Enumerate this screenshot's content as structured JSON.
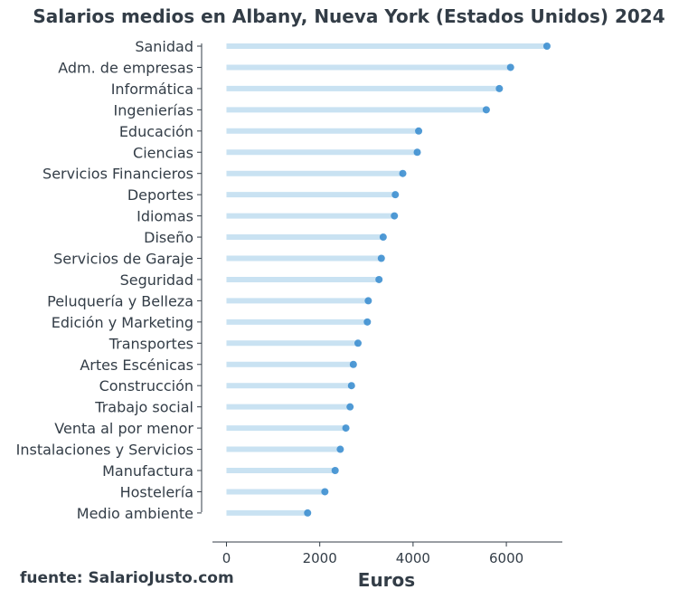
{
  "title": "Salarios medios en Albany, Nueva York (Estados Unidos) 2024",
  "source": "fuente: SalarioJusto.com",
  "colors": {
    "stem": "#c9e2f2",
    "point": "#3d8fd0",
    "axis": "#333d47"
  },
  "chart_data": {
    "type": "lollipop",
    "title": "Salarios medios en Albany, Nueva York (Estados Unidos) 2024",
    "xlabel": "Euros",
    "ylabel": "",
    "xlim": [
      -300,
      7200
    ],
    "xticks": [
      0,
      2000,
      4000,
      6000
    ],
    "grid": false,
    "categories": [
      "Sanidad",
      "Adm. de empresas",
      "Informática",
      "Ingenierías",
      "Educación",
      "Ciencias",
      "Servicios Financieros",
      "Deportes",
      "Idiomas",
      "Diseño",
      "Servicios de Garaje",
      "Seguridad",
      "Peluquería y Belleza",
      "Edición y Marketing",
      "Transportes",
      "Artes Escénicas",
      "Construcción",
      "Trabajo social",
      "Venta al por menor",
      "Instalaciones y Servicios",
      "Manufactura",
      "Hostelería",
      "Medio ambiente"
    ],
    "values": [
      6870,
      6090,
      5850,
      5570,
      4120,
      4090,
      3780,
      3620,
      3600,
      3360,
      3320,
      3270,
      3040,
      3020,
      2820,
      2720,
      2680,
      2650,
      2560,
      2440,
      2330,
      2110,
      1740
    ]
  }
}
